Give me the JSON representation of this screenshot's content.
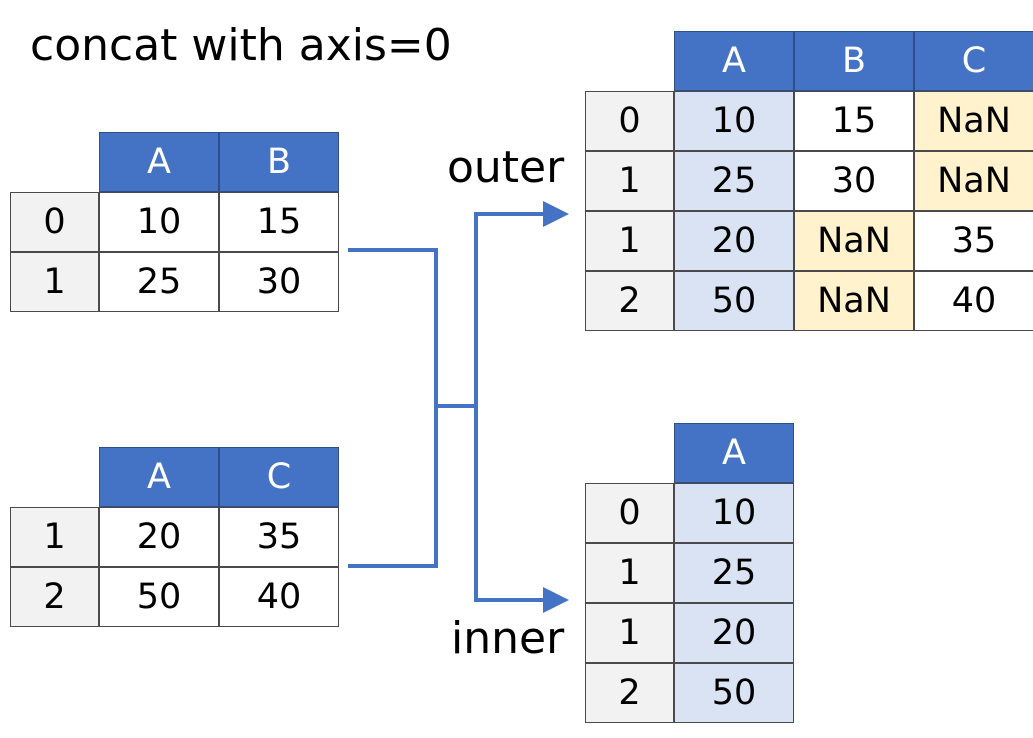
{
  "title": "concat with axis=0",
  "labels": {
    "outer": "outer",
    "inner": "inner"
  },
  "df1": {
    "columns": [
      "A",
      "B"
    ],
    "index": [
      "0",
      "1"
    ],
    "rows": [
      [
        "10",
        "15"
      ],
      [
        "25",
        "30"
      ]
    ]
  },
  "df2": {
    "columns": [
      "A",
      "C"
    ],
    "index": [
      "1",
      "2"
    ],
    "rows": [
      [
        "20",
        "35"
      ],
      [
        "50",
        "40"
      ]
    ]
  },
  "outer": {
    "columns": [
      "A",
      "B",
      "C"
    ],
    "index": [
      "0",
      "1",
      "1",
      "2"
    ],
    "rows": [
      [
        "10",
        "15",
        "NaN"
      ],
      [
        "25",
        "30",
        "NaN"
      ],
      [
        "20",
        "NaN",
        "35"
      ],
      [
        "50",
        "NaN",
        "40"
      ]
    ]
  },
  "inner": {
    "columns": [
      "A"
    ],
    "index": [
      "0",
      "1",
      "1",
      "2"
    ],
    "rows": [
      [
        "10"
      ],
      [
        "25"
      ],
      [
        "20"
      ],
      [
        "50"
      ]
    ]
  },
  "colors": {
    "header": "#4472c4",
    "index_bg": "#f2f2f2",
    "col_a_bg": "#dae3f3",
    "nan_bg": "#fff2cc",
    "arrow": "#4472c4"
  }
}
